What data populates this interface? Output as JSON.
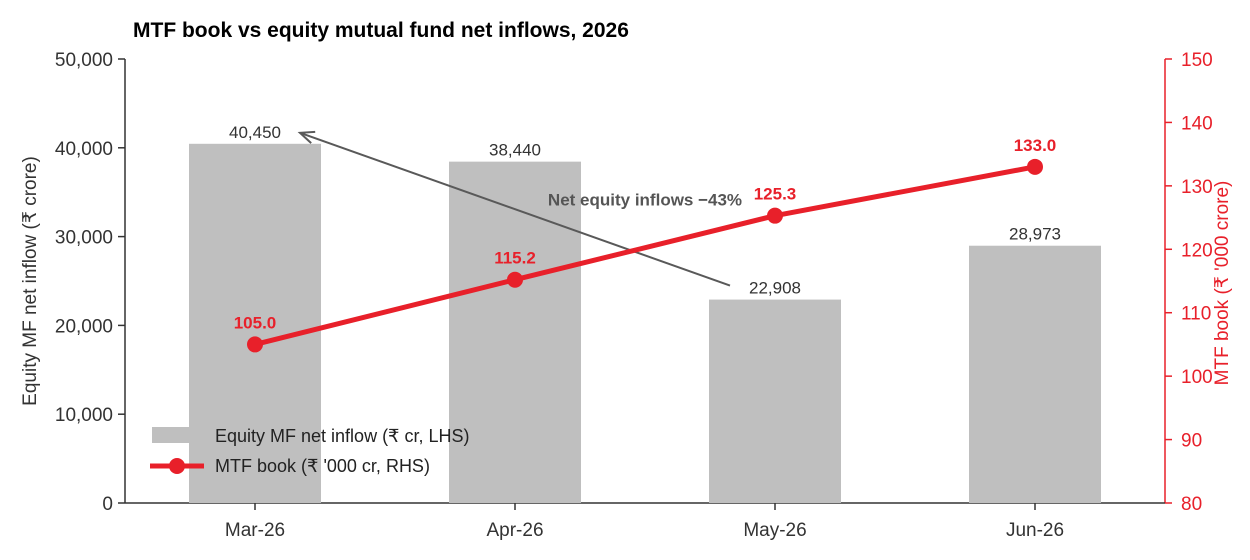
{
  "chart_data": {
    "type": "bar",
    "title": "MTF book vs equity mutual fund net inflows, 2026",
    "categories": [
      "Mar-26",
      "Apr-26",
      "May-26",
      "Jun-26"
    ],
    "series": [
      {
        "name": "Equity MF net inflow (₹ cr, LHS)",
        "type": "bar",
        "axis": "left",
        "values": [
          40450,
          38440,
          22908,
          28973
        ],
        "labels": [
          "40,450",
          "38,440",
          "22,908",
          "28,973"
        ]
      },
      {
        "name": "MTF book (₹ '000 cr, RHS)",
        "type": "line",
        "axis": "right",
        "values": [
          105.0,
          115.2,
          125.3,
          133.0
        ],
        "labels": [
          "105.0",
          "115.2",
          "125.3",
          "133.0"
        ]
      }
    ],
    "ylabel": "Equity MF net inflow (₹ crore)",
    "y2label": "MTF book (₹ '000 crore)",
    "ylim": [
      0,
      50000
    ],
    "y2lim": [
      80,
      150
    ],
    "yticks": [
      "0",
      "10,000",
      "20,000",
      "30,000",
      "40,000",
      "50,000"
    ],
    "y2ticks": [
      "80",
      "90",
      "100",
      "110",
      "120",
      "130",
      "140",
      "150"
    ],
    "annotation": {
      "text": "Net equity inflows −43%",
      "from_category": "May-26",
      "from_value": 22908,
      "to_category": "Mar-26",
      "to_value": 40450
    },
    "legend": "lower-left",
    "grid": false,
    "colors": {
      "bar": "#bfbfbf",
      "line": "#e8202a",
      "title": "#1f3864",
      "axis": "#333333",
      "annotation": "#595959"
    }
  }
}
